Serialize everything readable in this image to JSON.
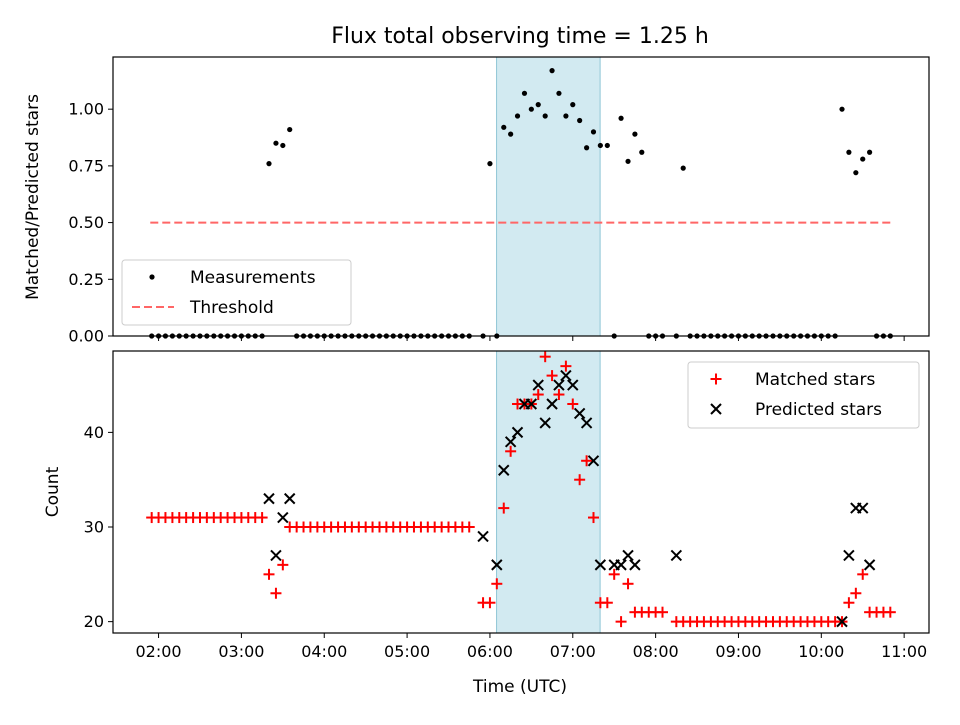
{
  "chart_data": {
    "type": "scatter",
    "title": "Flux total observing time = 1.25 h",
    "xlabel": "Time (UTC)",
    "x_ticks": [
      "02:00",
      "03:00",
      "04:00",
      "05:00",
      "06:00",
      "07:00",
      "08:00",
      "09:00",
      "10:00",
      "11:00"
    ],
    "x_range_hours": [
      1.45,
      11.3
    ],
    "highlight_band_hours": [
      6.08,
      7.33
    ],
    "highlight_color": "#add8e6",
    "panels": [
      {
        "id": "ratio",
        "ylabel": "Matched/Predicted stars",
        "ylim": [
          0,
          1.23
        ],
        "yticks": [
          "0.00",
          "0.25",
          "0.50",
          "0.75",
          "1.00"
        ],
        "threshold": 0.5,
        "threshold_range_hours": [
          1.9,
          10.85
        ],
        "legend_position": "lower-left",
        "legend": [
          "Measurements",
          "Threshold"
        ],
        "colors": {
          "measurements": "#000000",
          "threshold": "#ff6666"
        },
        "measurements_t": [
          1.917,
          2.0,
          2.083,
          2.167,
          2.25,
          2.333,
          2.417,
          2.5,
          2.583,
          2.667,
          2.75,
          2.833,
          2.917,
          3.0,
          3.083,
          3.167,
          3.25,
          3.333,
          3.417,
          3.5,
          3.583,
          3.667,
          3.75,
          3.833,
          3.917,
          4.0,
          4.083,
          4.167,
          4.25,
          4.333,
          4.417,
          4.5,
          4.583,
          4.667,
          4.75,
          4.833,
          4.917,
          5.0,
          5.083,
          5.167,
          5.25,
          5.333,
          5.417,
          5.5,
          5.583,
          5.667,
          5.75,
          5.917,
          6.0,
          6.083,
          6.167,
          6.25,
          6.333,
          6.417,
          6.5,
          6.583,
          6.667,
          6.75,
          6.833,
          6.917,
          7.0,
          7.083,
          7.167,
          7.25,
          7.333,
          7.417,
          7.5,
          7.583,
          7.667,
          7.75,
          7.833,
          7.917,
          8.0,
          8.083,
          8.25,
          8.333,
          8.417,
          8.5,
          8.583,
          8.667,
          8.75,
          8.833,
          8.917,
          9.0,
          9.083,
          9.167,
          9.25,
          9.333,
          9.417,
          9.5,
          9.583,
          9.667,
          9.75,
          9.833,
          9.917,
          10.0,
          10.083,
          10.167,
          10.25,
          10.333,
          10.417,
          10.5,
          10.583,
          10.667,
          10.75,
          10.833
        ],
        "measurements_v": [
          0,
          0,
          0,
          0,
          0,
          0,
          0,
          0,
          0,
          0,
          0,
          0,
          0,
          0,
          0,
          0,
          0,
          0.76,
          0.85,
          0.84,
          0.91,
          0,
          0,
          0,
          0,
          0,
          0,
          0,
          0,
          0,
          0,
          0,
          0,
          0,
          0,
          0,
          0,
          0,
          0,
          0,
          0,
          0,
          0,
          0,
          0,
          0,
          0,
          0,
          0.76,
          0,
          0.92,
          0.89,
          0.97,
          1.07,
          1.0,
          1.02,
          0.97,
          1.17,
          1.07,
          0.97,
          1.02,
          0.95,
          0.83,
          0.9,
          0.84,
          0.84,
          0,
          0.96,
          0.77,
          0.89,
          0.81,
          0,
          0,
          0,
          0,
          0.74,
          0,
          0,
          0,
          0,
          0,
          0,
          0,
          0,
          0,
          0,
          0,
          0,
          0,
          0,
          0,
          0,
          0,
          0,
          0,
          0,
          0,
          0,
          1.0,
          0.81,
          0.72,
          0.78,
          0.81,
          0,
          0,
          0
        ]
      },
      {
        "id": "count",
        "ylabel": "Count",
        "ylim": [
          18.8,
          48.6
        ],
        "yticks": [
          "20",
          "30",
          "40"
        ],
        "legend_position": "upper-right",
        "legend": [
          "Matched stars",
          "Predicted stars"
        ],
        "colors": {
          "matched": "#ff0000",
          "predicted": "#000000"
        },
        "matched_t": [
          1.917,
          2.0,
          2.083,
          2.167,
          2.25,
          2.333,
          2.417,
          2.5,
          2.583,
          2.667,
          2.75,
          2.833,
          2.917,
          3.0,
          3.083,
          3.167,
          3.25,
          3.333,
          3.417,
          3.5,
          3.583,
          3.667,
          3.75,
          3.833,
          3.917,
          4.0,
          4.083,
          4.167,
          4.25,
          4.333,
          4.417,
          4.5,
          4.583,
          4.667,
          4.75,
          4.833,
          4.917,
          5.0,
          5.083,
          5.167,
          5.25,
          5.333,
          5.417,
          5.5,
          5.583,
          5.667,
          5.75,
          5.917,
          6.0,
          6.083,
          6.167,
          6.25,
          6.333,
          6.417,
          6.5,
          6.583,
          6.667,
          6.75,
          6.833,
          6.917,
          7.0,
          7.083,
          7.167,
          7.25,
          7.333,
          7.417,
          7.5,
          7.583,
          7.667,
          7.75,
          7.833,
          7.917,
          8.0,
          8.083,
          8.25,
          8.333,
          8.417,
          8.5,
          8.583,
          8.667,
          8.75,
          8.833,
          8.917,
          9.0,
          9.083,
          9.167,
          9.25,
          9.333,
          9.417,
          9.5,
          9.583,
          9.667,
          9.75,
          9.833,
          9.917,
          10.0,
          10.083,
          10.167,
          10.25,
          10.333,
          10.417,
          10.5,
          10.583,
          10.667,
          10.75,
          10.833
        ],
        "matched_v": [
          31,
          31,
          31,
          31,
          31,
          31,
          31,
          31,
          31,
          31,
          31,
          31,
          31,
          31,
          31,
          31,
          31,
          25,
          23,
          26,
          30,
          30,
          30,
          30,
          30,
          30,
          30,
          30,
          30,
          30,
          30,
          30,
          30,
          30,
          30,
          30,
          30,
          30,
          30,
          30,
          30,
          30,
          30,
          30,
          30,
          30,
          30,
          22,
          22,
          24,
          32,
          38,
          43,
          43,
          43,
          44,
          48,
          46,
          44,
          47,
          43,
          35,
          37,
          31,
          22,
          22,
          25,
          20,
          24,
          21,
          21,
          21,
          21,
          21,
          20,
          20,
          20,
          20,
          20,
          20,
          20,
          20,
          20,
          20,
          20,
          20,
          20,
          20,
          20,
          20,
          20,
          20,
          20,
          20,
          20,
          20,
          20,
          20,
          20,
          22,
          23,
          25,
          21,
          21,
          21,
          21
        ],
        "predicted_t": [
          3.333,
          3.417,
          3.5,
          3.583,
          5.917,
          6.083,
          6.167,
          6.25,
          6.333,
          6.417,
          6.5,
          6.583,
          6.667,
          6.75,
          6.833,
          6.917,
          7.0,
          7.083,
          7.167,
          7.25,
          7.333,
          7.5,
          7.583,
          7.667,
          7.75,
          8.25,
          10.25,
          10.333,
          10.417,
          10.5,
          10.583
        ],
        "predicted_v": [
          33,
          27,
          31,
          33,
          29,
          26,
          36,
          39,
          40,
          43,
          43,
          45,
          41,
          43,
          45,
          46,
          45,
          42,
          41,
          37,
          26,
          26,
          26,
          27,
          26,
          27,
          20,
          27,
          32,
          32,
          26
        ]
      }
    ]
  }
}
